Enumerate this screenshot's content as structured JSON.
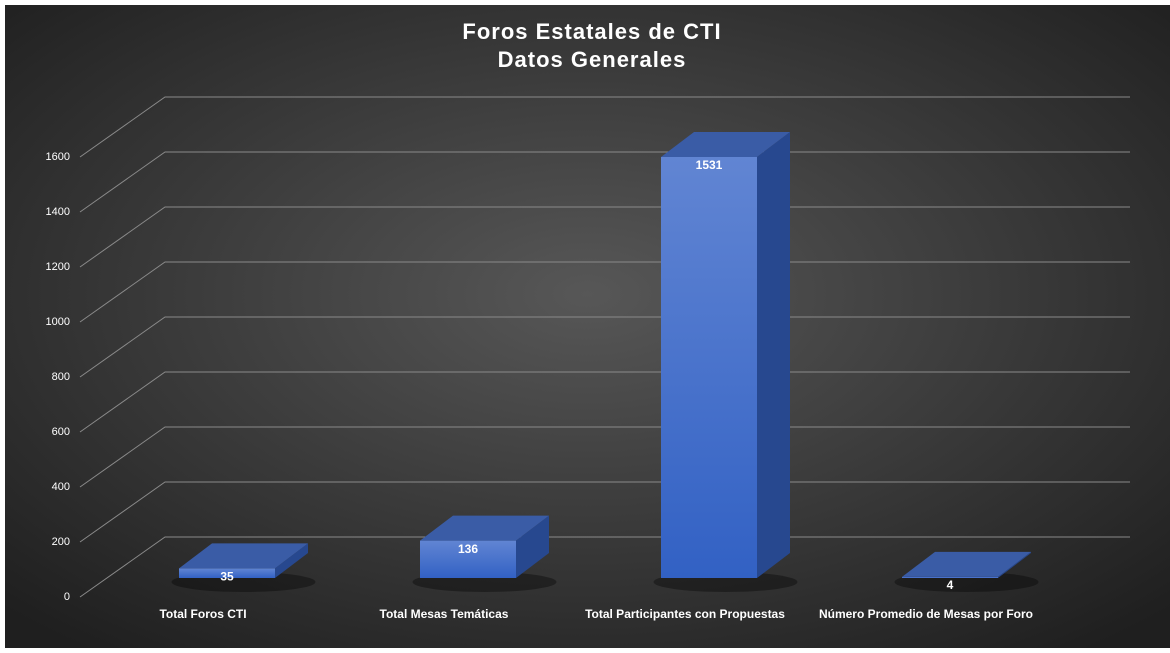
{
  "chart_data": {
    "type": "bar3d",
    "title": "Foros Estatales de CTI",
    "subtitle": "Datos Generales",
    "categories": [
      "Total Foros CTI",
      "Total Mesas Temáticas",
      "Total Participantes con Propuestas",
      "Número Promedio de Mesas por Foro"
    ],
    "values": [
      35,
      136,
      1531,
      4
    ],
    "color": "#4472c4",
    "ylim": [
      0,
      1600
    ],
    "yticks": [
      0,
      200,
      400,
      600,
      800,
      1000,
      1200,
      1400,
      1600
    ],
    "grid": true
  }
}
